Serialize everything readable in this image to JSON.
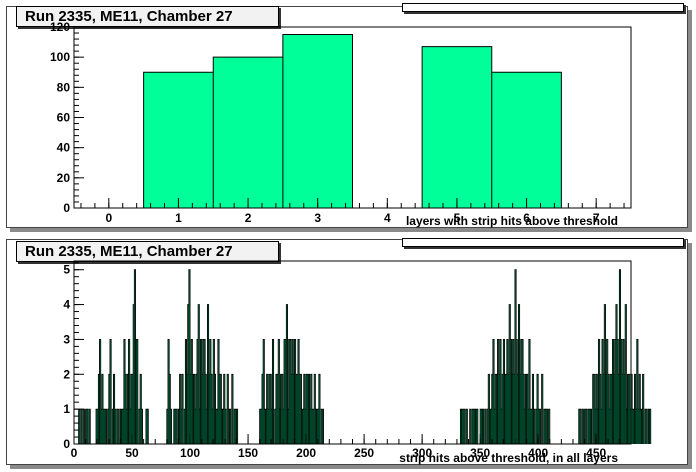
{
  "colors": {
    "fill": "#00ff99",
    "line": "#000000"
  },
  "panels": [
    {
      "title": "Run 2335, ME11, Chamber 27",
      "stats": {
        "name": "",
        "value": ""
      },
      "chart_data": {
        "type": "bar",
        "histogram": true,
        "xlabel": "layers with strip hits above threshold",
        "ylabel": "",
        "xlim": [
          -0.5,
          7.5
        ],
        "ylim": [
          0,
          120
        ],
        "xticks": [
          0,
          1,
          2,
          3,
          4,
          5,
          6,
          7
        ],
        "yticks": [
          0,
          20,
          40,
          60,
          80,
          100,
          120
        ],
        "bins": [
          {
            "x0": 0.5,
            "x1": 1.5,
            "value": 90
          },
          {
            "x0": 1.5,
            "x1": 2.5,
            "value": 100
          },
          {
            "x0": 2.5,
            "x1": 3.5,
            "value": 115
          },
          {
            "x0": 4.5,
            "x1": 5.5,
            "value": 107
          },
          {
            "x0": 5.5,
            "x1": 6.5,
            "value": 90
          }
        ]
      }
    },
    {
      "title": "Run 2335, ME11, Chamber 27",
      "stats": {
        "name": "",
        "value": ""
      },
      "chart_data": {
        "type": "bar",
        "histogram": true,
        "xlabel": "strip hits above threshold, in all layers",
        "ylabel": "",
        "xlim": [
          0,
          480
        ],
        "ylim": [
          0,
          5.25
        ],
        "xticks": [
          0,
          50,
          100,
          150,
          200,
          250,
          300,
          350,
          400,
          450
        ],
        "yticks": [
          0,
          1,
          2,
          3,
          4,
          5
        ],
        "bin_width": 1,
        "first_bin": 0,
        "values": [
          0,
          0,
          0,
          0,
          1,
          0,
          1,
          0,
          1,
          0,
          1,
          1,
          0,
          1,
          0,
          0,
          0,
          0,
          0,
          1,
          1,
          2,
          3,
          1,
          2,
          1,
          1,
          1,
          0,
          1,
          2,
          3,
          0,
          1,
          2,
          1,
          0,
          1,
          1,
          0,
          1,
          1,
          1,
          3,
          2,
          1,
          2,
          3,
          1,
          2,
          2,
          4,
          5,
          3,
          3,
          0,
          1,
          2,
          1,
          0,
          0,
          0,
          1,
          1,
          0,
          0,
          0,
          0,
          0,
          0,
          0,
          0,
          0,
          0,
          0,
          0,
          0,
          0,
          0,
          0,
          1,
          3,
          2,
          1,
          0,
          0,
          1,
          1,
          1,
          0,
          1,
          2,
          1,
          2,
          0,
          1,
          3,
          2,
          4,
          5,
          2,
          3,
          2,
          2,
          1,
          2,
          3,
          4,
          1,
          3,
          2,
          3,
          3,
          2,
          1,
          4,
          2,
          3,
          2,
          1,
          3,
          2,
          1,
          1,
          3,
          2,
          2,
          1,
          1,
          2,
          1,
          0,
          2,
          1,
          1,
          0,
          2,
          0,
          1,
          1,
          1,
          0,
          0,
          0,
          0,
          0,
          0,
          0,
          0,
          0,
          0,
          0,
          0,
          0,
          0,
          0,
          0,
          0,
          0,
          0,
          1,
          1,
          2,
          3,
          1,
          1,
          2,
          1,
          2,
          2,
          1,
          3,
          0,
          1,
          2,
          2,
          3,
          1,
          2,
          2,
          1,
          3,
          3,
          4,
          1,
          3,
          3,
          2,
          3,
          2,
          3,
          2,
          2,
          3,
          2,
          2,
          1,
          1,
          2,
          1,
          2,
          2,
          2,
          1,
          2,
          1,
          1,
          2,
          1,
          1,
          1,
          2,
          0,
          1,
          1,
          0,
          0,
          0,
          0,
          0,
          0,
          0,
          0,
          0,
          0,
          0,
          0,
          0,
          0,
          0,
          0,
          0,
          0,
          0,
          0,
          0,
          0,
          0,
          0,
          0,
          0,
          0,
          0,
          0,
          0,
          0,
          0,
          0,
          0,
          0,
          0,
          0,
          0,
          0,
          0,
          0,
          0,
          0,
          0,
          0,
          0,
          0,
          0,
          0,
          0,
          0,
          0,
          0,
          0,
          0,
          0,
          0,
          0,
          0,
          0,
          0,
          0,
          0,
          0,
          0,
          0,
          0,
          0,
          0,
          0,
          0,
          0,
          0,
          0,
          0,
          0,
          0,
          0,
          0,
          0,
          0,
          0,
          0,
          0,
          0,
          0,
          0,
          0,
          0,
          0,
          0,
          0,
          0,
          0,
          0,
          0,
          0,
          0,
          0,
          0,
          0,
          0,
          0,
          0,
          0,
          0,
          0,
          0,
          0,
          0,
          0,
          0,
          0,
          0,
          0,
          0,
          0,
          0,
          1,
          1,
          1,
          1,
          0,
          1,
          0,
          0,
          1,
          0,
          1,
          1,
          1,
          1,
          1,
          0,
          0,
          1,
          1,
          1,
          0,
          1,
          0,
          1,
          2,
          1,
          1,
          2,
          3,
          1,
          2,
          2,
          3,
          2,
          3,
          1,
          2,
          3,
          2,
          2,
          3,
          2,
          4,
          3,
          2,
          3,
          2,
          5,
          3,
          2,
          4,
          2,
          3,
          3,
          2,
          1,
          2,
          2,
          1,
          3,
          1,
          1,
          2,
          1,
          0,
          1,
          2,
          1,
          1,
          0,
          2,
          0,
          1,
          1,
          1,
          0,
          1,
          0,
          0,
          0,
          0,
          0,
          0,
          0,
          0,
          0,
          0,
          0,
          0,
          0,
          0,
          0,
          0,
          0,
          0,
          0,
          0,
          0,
          0,
          0,
          0,
          0,
          1,
          1,
          0,
          1,
          0,
          1,
          1,
          0,
          1,
          1,
          1,
          0,
          2,
          2,
          1,
          2,
          1,
          3,
          2,
          1,
          3,
          2,
          4,
          2,
          3,
          2,
          1,
          2,
          2,
          3,
          2,
          3,
          4,
          3,
          2,
          5,
          3,
          2,
          3,
          2,
          4,
          1,
          2,
          2,
          1,
          2,
          1,
          1,
          2,
          1,
          3,
          1,
          2,
          1,
          1,
          2,
          0,
          1,
          1,
          0,
          1,
          1,
          0,
          0,
          0,
          0,
          0,
          0,
          0,
          0,
          0,
          0,
          0
        ]
      }
    }
  ]
}
